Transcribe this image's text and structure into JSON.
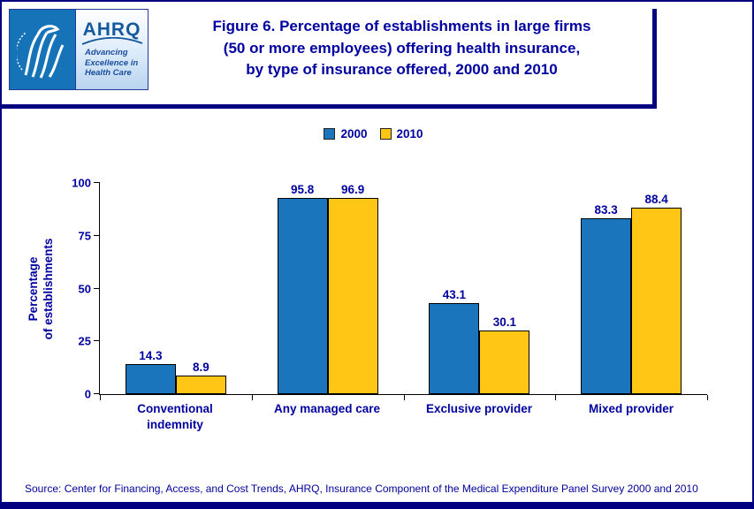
{
  "page": {
    "background": "#ffffff",
    "border_color": "#000080"
  },
  "header": {
    "logos": {
      "hhs_name": "U.S. Department of Health and Human Services seal",
      "ahrq_acronym": "AHRQ",
      "tagline_lines": [
        "Advancing",
        "Excellence in",
        "Health Care"
      ]
    },
    "title_lines": [
      "Figure 6. Percentage of establishments in large firms",
      "(50 or more employees) offering health insurance,",
      "by type of insurance offered, 2000 and 2010"
    ],
    "title_color": "#0000A0"
  },
  "chart_data": {
    "type": "bar",
    "title": "Figure 6. Percentage of establishments in large firms (50 or more employees) offering health insurance, by type of insurance offered, 2000 and 2010",
    "categories": [
      "Conventional indemnity",
      "Any managed care",
      "Exclusive provider",
      "Mixed provider"
    ],
    "series": [
      {
        "name": "2000",
        "color": "#1B75BC",
        "values": [
          14.3,
          95.8,
          43.1,
          83.3
        ]
      },
      {
        "name": "2010",
        "color": "#FFC615",
        "values": [
          8.9,
          96.9,
          30.1,
          88.4
        ]
      }
    ],
    "xlabel": "",
    "ylabel": "Percentage of establishments",
    "ylabel_lines": [
      "Percentage",
      "of establishments"
    ],
    "ylim": [
      0,
      100
    ],
    "yticks": [
      0,
      25,
      50,
      75,
      100
    ],
    "grid": false,
    "legend_position": "top",
    "bar_border_color": "#000000",
    "axis_color": "#000000",
    "label_color": "#0000A0"
  },
  "source": "Source: Center for Financing, Access, and Cost Trends, AHRQ, Insurance Component of the Medical Expenditure Panel Survey 2000 and 2010"
}
